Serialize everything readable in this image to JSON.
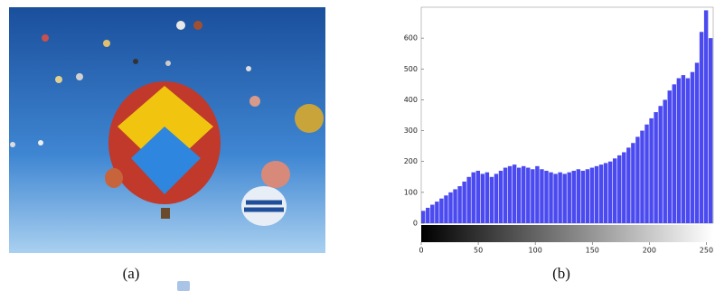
{
  "captions": [
    "(a)",
    "(b)"
  ],
  "chart_data": {
    "type": "histogram",
    "color": "#4a4af0",
    "bins": [
      0,
      4,
      8,
      12,
      16,
      20,
      24,
      28,
      32,
      36,
      40,
      44,
      48,
      52,
      56,
      60,
      64,
      68,
      72,
      76,
      80,
      84,
      88,
      92,
      96,
      100,
      104,
      108,
      112,
      116,
      120,
      124,
      128,
      132,
      136,
      140,
      144,
      148,
      152,
      156,
      160,
      164,
      168,
      172,
      176,
      180,
      184,
      188,
      192,
      196,
      200,
      204,
      208,
      212,
      216,
      220,
      224,
      228,
      232,
      236,
      240,
      244,
      248,
      252,
      256
    ],
    "values": [
      40,
      50,
      60,
      70,
      80,
      90,
      100,
      110,
      120,
      135,
      150,
      165,
      170,
      160,
      165,
      150,
      160,
      170,
      180,
      185,
      190,
      180,
      185,
      180,
      175,
      185,
      175,
      170,
      165,
      160,
      165,
      160,
      165,
      170,
      175,
      170,
      175,
      180,
      185,
      190,
      195,
      200,
      210,
      220,
      230,
      245,
      260,
      280,
      300,
      320,
      340,
      360,
      380,
      400,
      430,
      450,
      470,
      480,
      470,
      490,
      520,
      620,
      690,
      600
    ],
    "xlim": [
      0,
      256
    ],
    "ylim": [
      0,
      700
    ],
    "xticks": [
      0,
      50,
      100,
      150,
      200,
      250
    ],
    "yticks": [
      0,
      100,
      200,
      300,
      400,
      500,
      600
    ]
  }
}
